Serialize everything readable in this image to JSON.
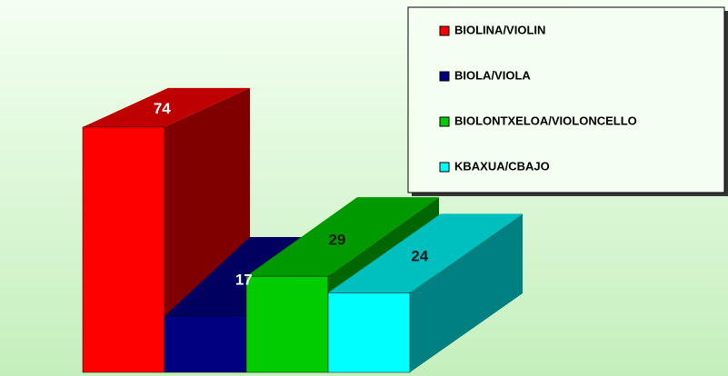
{
  "chart_data": {
    "type": "bar3d",
    "series": [
      {
        "name": "BIOLINA/VIOLIN",
        "color": "#ff0000",
        "values": [
          74
        ]
      },
      {
        "name": "BIOLA/VIOLA",
        "color": "#000080",
        "values": [
          17
        ]
      },
      {
        "name": "BIOLONTXELOA/VIOLONCELLO",
        "color": "#00cc00",
        "values": [
          29
        ]
      },
      {
        "name": "KBAXUA/CBAJO",
        "color": "#00ffff",
        "values": [
          24
        ]
      }
    ],
    "legend": "upper right"
  }
}
